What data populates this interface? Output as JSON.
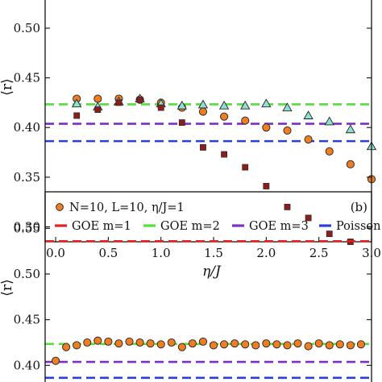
{
  "chart_data": [
    {
      "type": "scatter",
      "panel": "a",
      "title": "",
      "xlabel": "η/J",
      "ylabel": "⟨r⟩",
      "xlim": [
        -0.1,
        3.0
      ],
      "ylim": [
        0.285,
        0.53
      ],
      "x_ticks": [
        "0.0",
        "0.5",
        "1.0",
        "1.5",
        "2.0",
        "2.5",
        "3.0"
      ],
      "x_tick_values": [
        0.0,
        0.5,
        1.0,
        1.5,
        2.0,
        2.5,
        3.0
      ],
      "y_ticks": [
        "0.30",
        "0.35",
        "0.40",
        "0.45",
        "0.50"
      ],
      "y_tick_values": [
        0.3,
        0.35,
        0.4,
        0.45,
        0.5
      ],
      "reference_lines": [
        {
          "value": 0.4234,
          "color": "#55dd3a"
        },
        {
          "value": 0.4038,
          "color": "#7d2fc4"
        },
        {
          "value": 0.3863,
          "color": "#2a3fd6"
        }
      ],
      "series": [
        {
          "marker": "circle",
          "color": "#ef7d22",
          "x": [
            0.2,
            0.4,
            0.6,
            0.8,
            1.0,
            1.2,
            1.4,
            1.6,
            1.8,
            2.0,
            2.2,
            2.4,
            2.6,
            2.8,
            3.0
          ],
          "y": [
            0.429,
            0.429,
            0.429,
            0.428,
            0.425,
            0.42,
            0.416,
            0.411,
            0.407,
            0.4,
            0.397,
            0.388,
            0.376,
            0.363,
            0.348
          ]
        },
        {
          "marker": "triangle",
          "color": "#8fe0d0",
          "x": [
            0.2,
            0.4,
            0.6,
            0.8,
            1.0,
            1.2,
            1.4,
            1.6,
            1.8,
            2.0,
            2.2,
            2.4,
            2.6,
            2.8,
            3.0
          ],
          "y": [
            0.424,
            0.421,
            0.426,
            0.429,
            0.424,
            0.422,
            0.423,
            0.422,
            0.422,
            0.424,
            0.42,
            0.412,
            0.406,
            0.398,
            0.381
          ]
        },
        {
          "marker": "square",
          "color": "#8a1f1f",
          "x": [
            0.2,
            0.4,
            0.6,
            0.8,
            1.0,
            1.2,
            1.4,
            1.6,
            1.8,
            2.0,
            2.2,
            2.4,
            2.6,
            2.8
          ],
          "y": [
            0.412,
            0.418,
            0.425,
            0.428,
            0.42,
            0.405,
            0.38,
            0.373,
            0.36,
            0.341,
            0.32,
            0.309,
            0.293,
            0.285
          ]
        }
      ]
    },
    {
      "type": "scatter",
      "panel": "b",
      "panel_label": "(b)",
      "title": "",
      "xlabel": "",
      "ylabel": "⟨r⟩",
      "xlim": [
        -0.1,
        3.0
      ],
      "ylim": [
        0.38,
        0.59
      ],
      "y_ticks": [
        "0.40",
        "0.45",
        "0.50",
        "0.55"
      ],
      "y_tick_values": [
        0.4,
        0.45,
        0.5,
        0.55
      ],
      "legend": [
        {
          "label": "N=10, L=10, η/J=1",
          "marker": "circle",
          "color": "#ef7d22"
        },
        {
          "label": "GOE m=1",
          "marker": "line",
          "color": "#e0211f"
        },
        {
          "label": "GOE m=2",
          "marker": "line",
          "color": "#55dd3a"
        },
        {
          "label": "GOE m=3",
          "marker": "line",
          "color": "#7d2fc4"
        },
        {
          "label": "Poisson",
          "marker": "line",
          "color": "#2a3fd6"
        }
      ],
      "reference_lines": [
        {
          "name": "GOE m=1",
          "value": 0.5359,
          "color": "#e0211f"
        },
        {
          "name": "GOE m=2",
          "value": 0.4234,
          "color": "#55dd3a"
        },
        {
          "name": "GOE m=3",
          "value": 0.4038,
          "color": "#7d2fc4"
        },
        {
          "name": "Poisson",
          "value": 0.3863,
          "color": "#2a3fd6"
        }
      ],
      "series": [
        {
          "name": "N=10, L=10, η/J=1",
          "marker": "circle",
          "color": "#ef7d22",
          "x": [
            0.0,
            0.1,
            0.2,
            0.3,
            0.4,
            0.5,
            0.6,
            0.7,
            0.8,
            0.9,
            1.0,
            1.1,
            1.2,
            1.3,
            1.4,
            1.5,
            1.6,
            1.7,
            1.8,
            1.9,
            2.0,
            2.1,
            2.2,
            2.3,
            2.4,
            2.5,
            2.6,
            2.7,
            2.8,
            2.9
          ],
          "y": [
            0.405,
            0.42,
            0.422,
            0.425,
            0.427,
            0.426,
            0.424,
            0.426,
            0.425,
            0.424,
            0.423,
            0.425,
            0.42,
            0.424,
            0.426,
            0.422,
            0.423,
            0.424,
            0.423,
            0.422,
            0.424,
            0.423,
            0.422,
            0.424,
            0.421,
            0.424,
            0.422,
            0.423,
            0.422,
            0.423
          ]
        }
      ]
    }
  ]
}
